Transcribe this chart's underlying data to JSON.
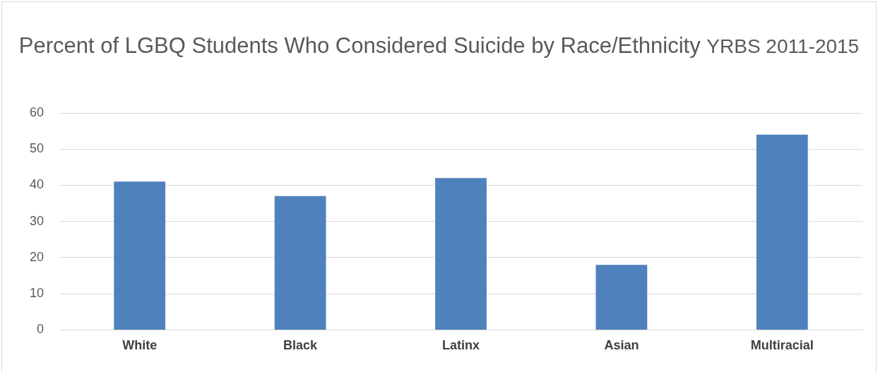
{
  "chart_data": {
    "type": "bar",
    "title": "Percent of LGBQ Students Who Considered Suicide by Race/Ethnicity",
    "subtitle": "YRBS 2011-2015",
    "categories": [
      "White",
      "Black",
      "Latinx",
      "Asian",
      "Multiracial"
    ],
    "values": [
      41,
      37,
      42,
      18,
      54
    ],
    "color": "#4f81bd",
    "ylim": [
      0,
      60
    ],
    "yticks": [
      0,
      10,
      20,
      30,
      40,
      50,
      60
    ],
    "grid": "y",
    "legend": false
  }
}
